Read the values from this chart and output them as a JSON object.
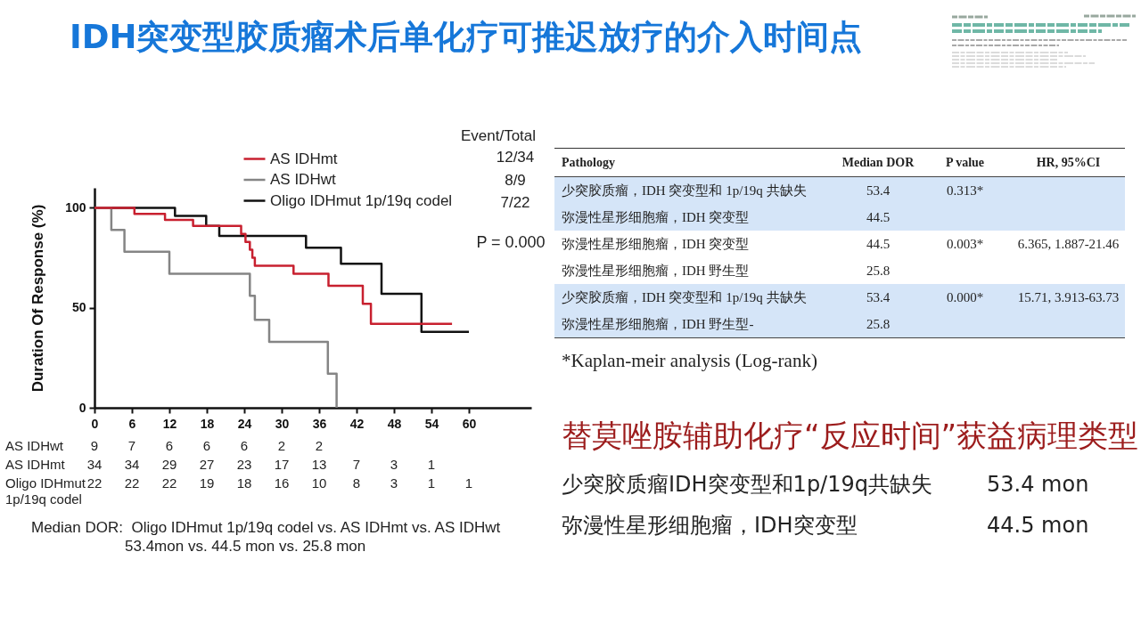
{
  "chart_data": [
    {
      "type": "step",
      "title": "IDH突变型胶质瘤术后单化疗可推迟放疗的介入时间点",
      "ylabel": "Duration Of Response (%)",
      "xlim": [
        0,
        70
      ],
      "xticks": [
        0,
        6,
        12,
        18,
        24,
        30,
        36,
        42,
        48,
        54,
        60
      ],
      "ylim": [
        0,
        110
      ],
      "yticks": [
        0,
        50,
        100
      ],
      "grid": false,
      "legend": "top right",
      "series": [
        {
          "name": "AS IDHmt",
          "color": "#c8202f",
          "x": [
            0,
            6.4,
            11.3,
            15.8,
            23.5,
            24.2,
            24.9,
            25.3,
            25.7,
            31.9,
            37.5,
            43.0,
            44.3,
            57.3
          ],
          "values": [
            100,
            97,
            94,
            91,
            87,
            83,
            79,
            75,
            71,
            67,
            61,
            52,
            42,
            42
          ]
        },
        {
          "name": "AS IDHwt",
          "color": "#858585",
          "x": [
            0,
            2.7,
            4.8,
            12.0,
            24.9,
            25.7,
            28.0,
            37.4,
            38.8
          ],
          "values": [
            100,
            89,
            78,
            67,
            56,
            44,
            33,
            17,
            0
          ]
        },
        {
          "name": "Oligo IDHmut 1p/19q codel",
          "color": "#111111",
          "x": [
            0,
            12.9,
            17.9,
            20.0,
            33.9,
            39.5,
            46.0,
            52.4,
            60.0
          ],
          "values": [
            100,
            96,
            91,
            86,
            80,
            72,
            57,
            38,
            38
          ]
        }
      ],
      "annotations": [
        "Event/Total",
        "12/34",
        "8/9",
        "7/22",
        "P = 0.000",
        "AS IDHwt\t9\t7\t6\t6\t6\t2\t2",
        "AS IDHmt\t34\t34\t29\t27\t23\t17\t13\t7\t3\t1",
        "Oligo IDHmut 1p/19q codel\t22\t22\t22\t19\t18\t16\t10\t8\t3\t1\t1",
        "Median DOR:  Oligo IDHmut 1p/19q codel vs. AS IDHmt vs. AS IDHwt",
        "53.4mon vs. 44.5 mon vs. 25.8 mon"
      ]
    },
    {
      "type": "other",
      "annotations": [
        "Pathology\tMedian DOR\tP value\tHR, 95%CI",
        "少突胶质瘤，IDH 突变型和 1p/19q 共缺失\t53.4\t0.313*",
        "弥漫性星形细胞瘤，IDH 突变型\t44.5",
        "弥漫性星形细胞瘤，IDH 突变型\t44.5\t0.003*\t6.365, 1.887-21.46",
        "弥漫性星形细胞瘤，IDH 野生型\t25.8",
        "少突胶质瘤，IDH 突变型和 1p/19q 共缺失\t53.4\t0.000*\t15.71, 3.913-63.73",
        "弥漫性星形细胞瘤，IDH 野生型-\t25.8",
        "*Kaplan-meir analysis (Log-rank)"
      ]
    },
    {
      "type": "other",
      "title": "替莫唑胺辅助化疗“反应时间”获益病理类型",
      "annotations": [
        "少突胶质瘤IDH突变型和1p/19q共缺失\t53.4 mon",
        "弥漫性星形细胞瘤，IDH突变型\t44.5 mon"
      ]
    }
  ]
}
